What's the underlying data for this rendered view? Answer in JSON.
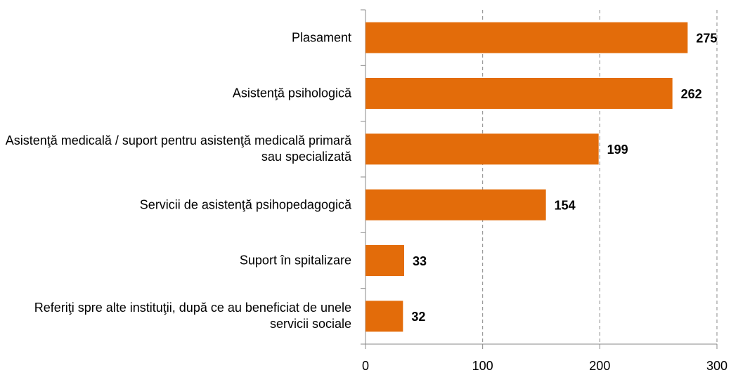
{
  "chart_data": {
    "type": "bar",
    "orientation": "horizontal",
    "categories": [
      "Plasament",
      "Asistenţă psihologică",
      "Asistenţă medicală / suport pentru asistenţă medicală primară sau specializată",
      "Servicii de asistenţă psihopedagogică",
      "Suport în spitalizare",
      "Referiţi spre alte instituţii, după ce au beneficiat de unele servicii sociale"
    ],
    "values": [
      275,
      262,
      199,
      154,
      33,
      32
    ],
    "color": "#e36c0a",
    "xlim": [
      0,
      300
    ],
    "xticks": [
      0,
      100,
      200,
      300
    ],
    "grid": true
  }
}
